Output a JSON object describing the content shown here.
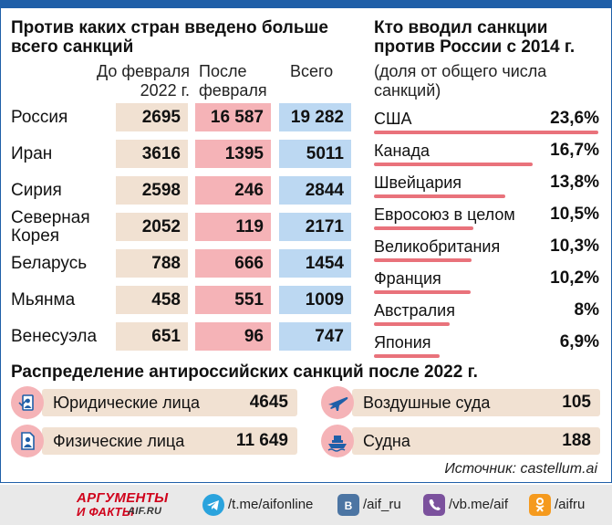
{
  "chart_data": [
    {
      "type": "table",
      "title": "Против каких стран введено больше всего санкций",
      "columns": [
        "До февраля 2022 г.",
        "После февраля",
        "Всего"
      ],
      "rows": [
        {
          "country": "Россия",
          "before": "2695",
          "after": "16 587",
          "total": "19 282"
        },
        {
          "country": "Иран",
          "before": "3616",
          "after": "1395",
          "total": "5011"
        },
        {
          "country": "Сирия",
          "before": "2598",
          "after": "246",
          "total": "2844"
        },
        {
          "country": "Северная Корея",
          "before": "2052",
          "after": "119",
          "total": "2171"
        },
        {
          "country": "Беларусь",
          "before": "788",
          "after": "666",
          "total": "1454"
        },
        {
          "country": "Мьянма",
          "before": "458",
          "after": "551",
          "total": "1009"
        },
        {
          "country": "Венесуэла",
          "before": "651",
          "after": "96",
          "total": "747"
        }
      ]
    },
    {
      "type": "bar",
      "title": "Кто вводил санкции против России с 2014 г.",
      "subtitle": "(доля от общего числа санкций)",
      "categories": [
        "США",
        "Канада",
        "Швейцария",
        "Евросоюз в целом",
        "Великобритания",
        "Франция",
        "Австралия",
        "Япония"
      ],
      "values": [
        23.6,
        16.7,
        13.8,
        10.5,
        10.3,
        10.2,
        8,
        6.9
      ],
      "value_labels": [
        "23,6%",
        "16,7%",
        "13,8%",
        "10,5%",
        "10,3%",
        "10,2%",
        "8%",
        "6,9%"
      ],
      "bar_color": "#e9727b",
      "ylim": [
        0,
        23.6
      ]
    },
    {
      "type": "table",
      "title": "Распределение антироссийских санкций после 2022 г.",
      "items": [
        {
          "label": "Юридические лица",
          "value": "4645",
          "icon": "legal-entity-icon"
        },
        {
          "label": "Физические лица",
          "value": "11 649",
          "icon": "person-document-icon"
        },
        {
          "label": "Воздушные суда",
          "value": "105",
          "icon": "airplane-icon"
        },
        {
          "label": "Судна",
          "value": "188",
          "icon": "ship-icon"
        }
      ]
    }
  ],
  "source": "Источник: castellum.ai",
  "footer": {
    "logo_line1": "АРГУМЕНТЫ",
    "logo_line2": "И ФАКТЫ",
    "logo_domain": "AIF.RU",
    "links": [
      {
        "icon": "telegram-icon",
        "text": "/t.me/aifonline",
        "color": "#2aa3dd"
      },
      {
        "icon": "vk-icon",
        "text": "/aif_ru",
        "color": "#4c75a3"
      },
      {
        "icon": "viber-icon",
        "text": "/vb.me/aif",
        "color": "#7b519d"
      },
      {
        "icon": "ok-icon",
        "text": "/aifru",
        "color": "#f59a1e"
      }
    ]
  },
  "colors": {
    "accent": "#1f5fa8",
    "beige": "#f1e1d2",
    "pink": "#f5b3b7",
    "blue": "#bcd8f2",
    "bar": "#e9727b"
  }
}
